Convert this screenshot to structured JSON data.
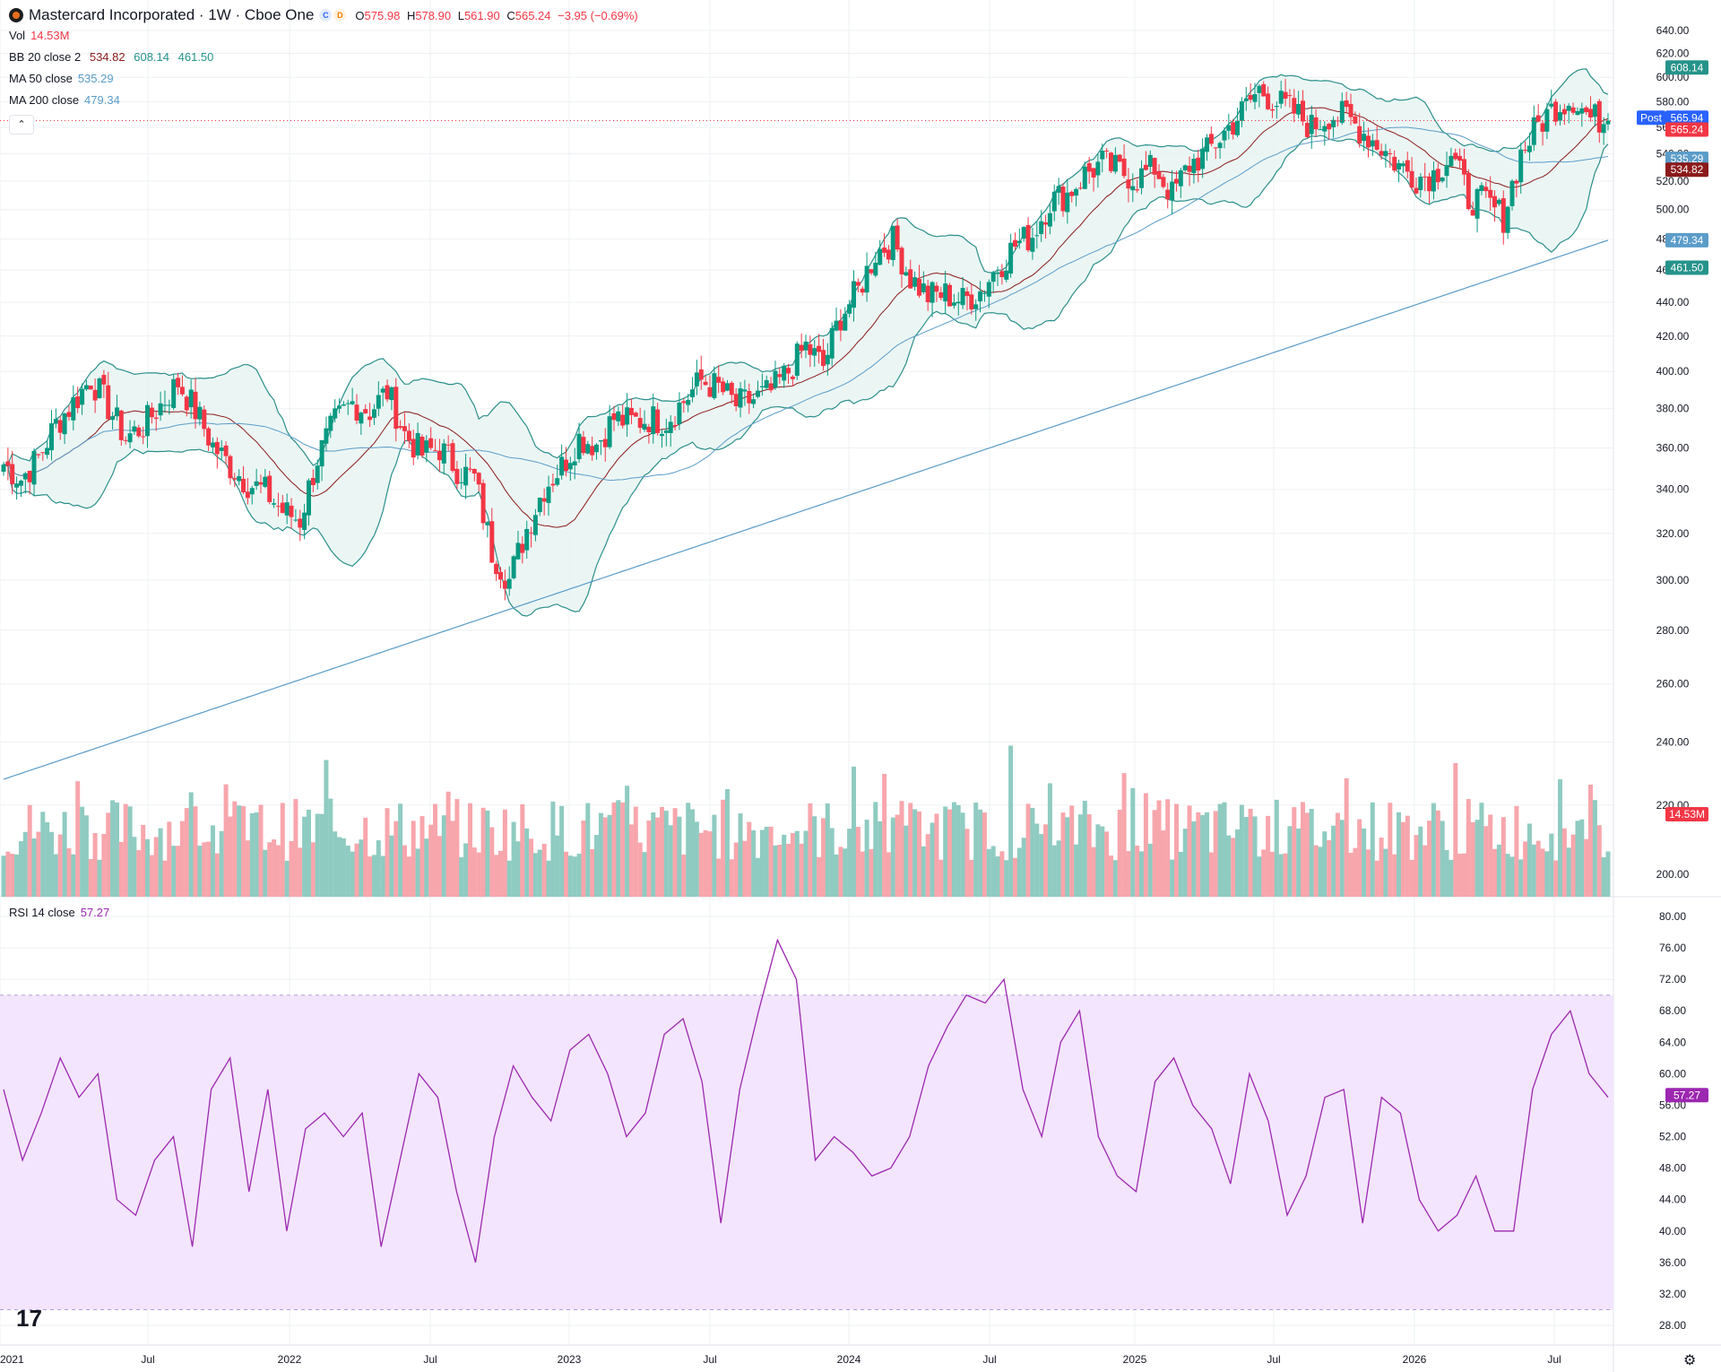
{
  "header": {
    "title": "Mastercard Incorporated · 1W · Cboe One",
    "badge_c": "C",
    "badge_d": "D",
    "open_label": "O",
    "open": "575.98",
    "high_label": "H",
    "high": "578.90",
    "low_label": "L",
    "low": "561.90",
    "close_label": "C",
    "close": "565.24",
    "change": "−3.95 (−0.69%)"
  },
  "indicators": {
    "vol": {
      "label": "Vol",
      "value": "14.53M"
    },
    "bb": {
      "label": "BB 20 close 2",
      "basis": "534.82",
      "upper": "608.14",
      "lower": "461.50"
    },
    "ma50": {
      "label": "MA 50 close",
      "value": "535.29"
    },
    "ma200": {
      "label": "MA 200 close",
      "value": "479.34"
    },
    "rsi": {
      "label": "RSI 14 close",
      "value": "57.27"
    }
  },
  "collapse_icon": "chevron-up-icon",
  "price_axis_labels": [
    "640.00",
    "620.00",
    "600.00",
    "580.00",
    "560.00",
    "540.00",
    "520.00",
    "500.00",
    "480.00",
    "460.00",
    "440.00",
    "420.00",
    "400.00",
    "380.00",
    "360.00",
    "340.00",
    "320.00",
    "300.00",
    "280.00",
    "260.00",
    "240.00",
    "220.00",
    "200.00"
  ],
  "rsi_axis_labels": [
    "80.00",
    "76.00",
    "72.00",
    "68.00",
    "64.00",
    "60.00",
    "56.00",
    "52.00",
    "48.00",
    "44.00",
    "40.00",
    "36.00",
    "32.00",
    "28.00"
  ],
  "time_axis_labels": [
    "2021",
    "Jul",
    "2022",
    "Jul",
    "2023",
    "Jul",
    "2024",
    "Jul",
    "2025",
    "Jul",
    "2026",
    "Jul"
  ],
  "price_tags": [
    {
      "text": "608.14",
      "color": "#26938a"
    },
    {
      "text": "600.00",
      "color": "bold"
    },
    {
      "text": "Post",
      "color": "#2962ff"
    },
    {
      "text": "565.94",
      "color": "#2962ff"
    },
    {
      "text": "565.24",
      "color": "#f23645"
    },
    {
      "text": "535.29",
      "color": "#5b9cc9"
    },
    {
      "text": "534.82",
      "color": "#8b1a1a"
    },
    {
      "text": "479.34",
      "color": "#5b9cc9"
    },
    {
      "text": "461.50",
      "color": "#26938a"
    },
    {
      "text": "14.53M",
      "color": "#f23645"
    },
    {
      "text": "57.27",
      "color": "#9c27b0"
    }
  ],
  "colors": {
    "up": "#089981",
    "down": "#f23645",
    "vol_up": "#8fcbc1",
    "vol_down": "#f7a6ac",
    "bb_band": "#2b8f8a",
    "bb_fill": "#e6f4f1",
    "bb_basis": "#8b1a1a",
    "ma50": "#5b9cc9",
    "ma200": "#5b9cc9",
    "rsi": "#9c27b0",
    "rsi_band": "#f3e5fd",
    "grid": "#eef0f3"
  },
  "chart_data": [
    {
      "type": "candlestick",
      "title": "Mastercard Incorporated · 1W · Cboe One",
      "timeframe": "1W",
      "x_range": [
        "2021-01",
        "2026-09"
      ],
      "ylim": [
        190,
        645
      ],
      "y_scale": "log",
      "sample_every": "4 weeks",
      "close": [
        352,
        345,
        355,
        372,
        383,
        396,
        381,
        365,
        371,
        382,
        394,
        379,
        361,
        351,
        343,
        339,
        330,
        326,
        355,
        373,
        383,
        379,
        389,
        367,
        357,
        360,
        350,
        345,
        312,
        300,
        322,
        341,
        351,
        365,
        362,
        375,
        373,
        375,
        374,
        384,
        395,
        391,
        382,
        385,
        389,
        400,
        414,
        403,
        432,
        447,
        471,
        479,
        455,
        444,
        445,
        441,
        447,
        462,
        476,
        483,
        506,
        511,
        525,
        533,
        527,
        522,
        530,
        510,
        532,
        541,
        556,
        572,
        590,
        580,
        572,
        560,
        570,
        568,
        556,
        545,
        531,
        523,
        525,
        540,
        508,
        505,
        495,
        540,
        562,
        577,
        583,
        567,
        566
      ],
      "overlays": [
        {
          "name": "BB 20 close 2 (basis)",
          "last": 534.82
        },
        {
          "name": "BB upper",
          "last": 608.14
        },
        {
          "name": "BB lower",
          "last": 461.5
        },
        {
          "name": "MA 50 close",
          "last": 535.29
        },
        {
          "name": "MA 200 close",
          "last": 479.34
        }
      ]
    },
    {
      "type": "bar",
      "title": "Vol",
      "last": "14.53M",
      "note": "weekly volume histogram under price pane"
    },
    {
      "type": "line",
      "title": "RSI 14 close",
      "ylim": [
        26,
        82
      ],
      "band": [
        30,
        70
      ],
      "last": 57.27,
      "values": [
        58,
        49,
        55,
        62,
        57,
        60,
        44,
        42,
        49,
        52,
        38,
        58,
        62,
        45,
        58,
        40,
        53,
        55,
        52,
        55,
        38,
        49,
        60,
        57,
        45,
        36,
        52,
        61,
        57,
        54,
        63,
        65,
        60,
        52,
        55,
        65,
        67,
        59,
        41,
        58,
        68,
        77,
        72,
        49,
        52,
        50,
        47,
        48,
        52,
        61,
        66,
        70,
        69,
        72,
        58,
        52,
        64,
        68,
        52,
        47,
        45,
        59,
        62,
        56,
        53,
        46,
        60,
        54,
        42,
        47,
        57,
        58,
        41,
        57,
        55,
        44,
        40,
        42,
        47,
        40,
        40,
        58,
        65,
        68,
        60,
        57
      ]
    }
  ]
}
